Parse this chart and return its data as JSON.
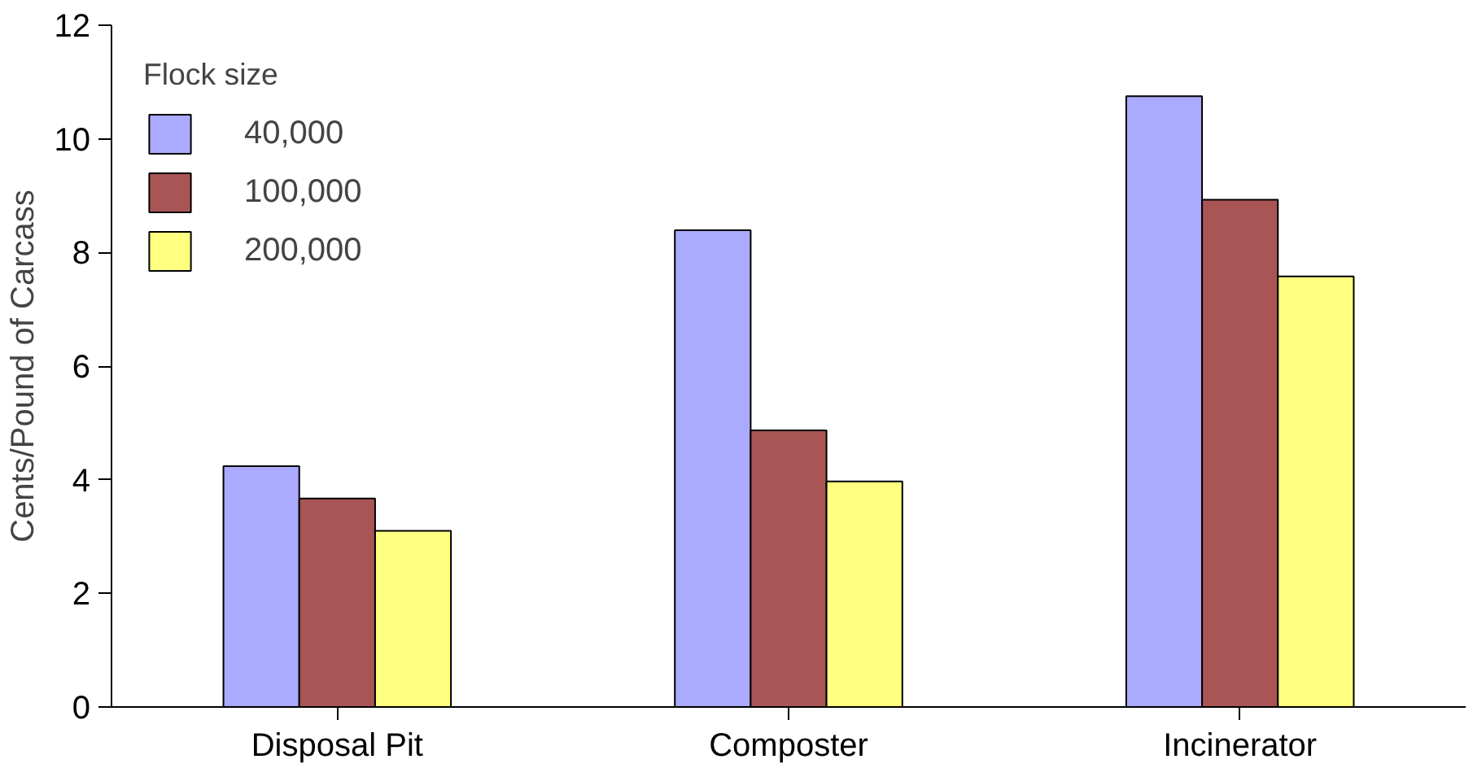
{
  "chart_data": {
    "type": "bar",
    "ylabel": "Cents/Pound of Carcass",
    "legend_title": "Flock size",
    "categories": [
      "Disposal Pit",
      "Composter",
      "Incinerator"
    ],
    "series": [
      {
        "name": "40,000",
        "color": "#aaaaff",
        "values": [
          4.24,
          8.39,
          10.75
        ]
      },
      {
        "name": "100,000",
        "color": "#aa5555",
        "values": [
          3.67,
          4.87,
          8.93
        ]
      },
      {
        "name": "200,000",
        "color": "#ffff80",
        "values": [
          3.1,
          3.97,
          7.58
        ]
      }
    ],
    "ylim": [
      0,
      12
    ],
    "yticks": [
      0,
      2,
      4,
      6,
      8,
      10,
      12
    ],
    "grid": false,
    "legend": "top left"
  }
}
